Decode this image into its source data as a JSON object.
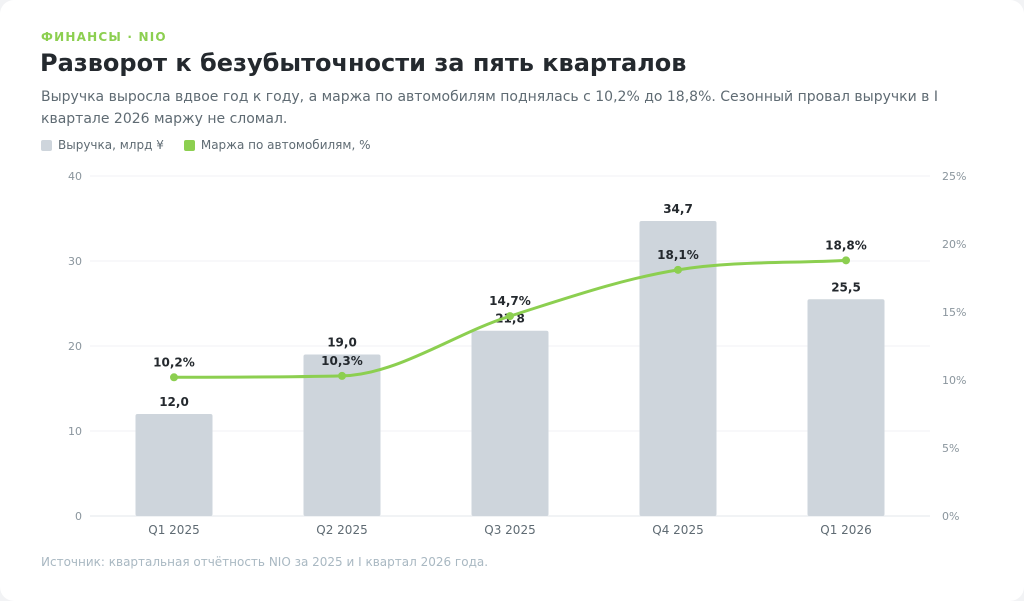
{
  "kicker": "ФИНАНСЫ · NIO",
  "title": "Разворот к безубыточности за пять кварталов",
  "subtitle": "Выручка выросла вдвое год к году, а маржа по автомобилям поднялась с 10,2% до 18,8%. Сезонный провал выручки в I квартале 2026 маржу не сломал.",
  "legend": [
    {
      "label": "Выручка, млрд ¥",
      "color": "#ced5dc"
    },
    {
      "label": "Маржа по автомобилям, %",
      "color": "#8ccf50"
    }
  ],
  "source": "Источник: квартальная отчётность NIO за 2025 и I квартал 2026 года.",
  "chart_data": {
    "type": "bar",
    "categories": [
      "Q1 2025",
      "Q2 2025",
      "Q3 2025",
      "Q4 2025",
      "Q1 2026"
    ],
    "series": [
      {
        "name": "Выручка, млрд ¥",
        "type": "bar",
        "axis": "left",
        "values": [
          12.0,
          19.0,
          21.8,
          34.7,
          25.5
        ],
        "labels": [
          "12,0",
          "19,0",
          "21,8",
          "34,7",
          "25,5"
        ],
        "color": "#ced5dc"
      },
      {
        "name": "Маржа по автомобилям, %",
        "type": "line",
        "axis": "right",
        "values": [
          10.2,
          10.3,
          14.7,
          18.1,
          18.8
        ],
        "labels": [
          "10,2%",
          "10,3%",
          "14,7%",
          "18,1%",
          "18,8%"
        ],
        "color": "#8ccf50"
      }
    ],
    "y_left": {
      "min": 0,
      "max": 40,
      "ticks": [
        "0",
        "10",
        "20",
        "30",
        "40"
      ]
    },
    "y_right": {
      "min": 0,
      "max": 25,
      "ticks": [
        "0%",
        "5%",
        "10%",
        "15%",
        "20%",
        "25%"
      ]
    },
    "grid": true,
    "legend_position": "top-left"
  }
}
